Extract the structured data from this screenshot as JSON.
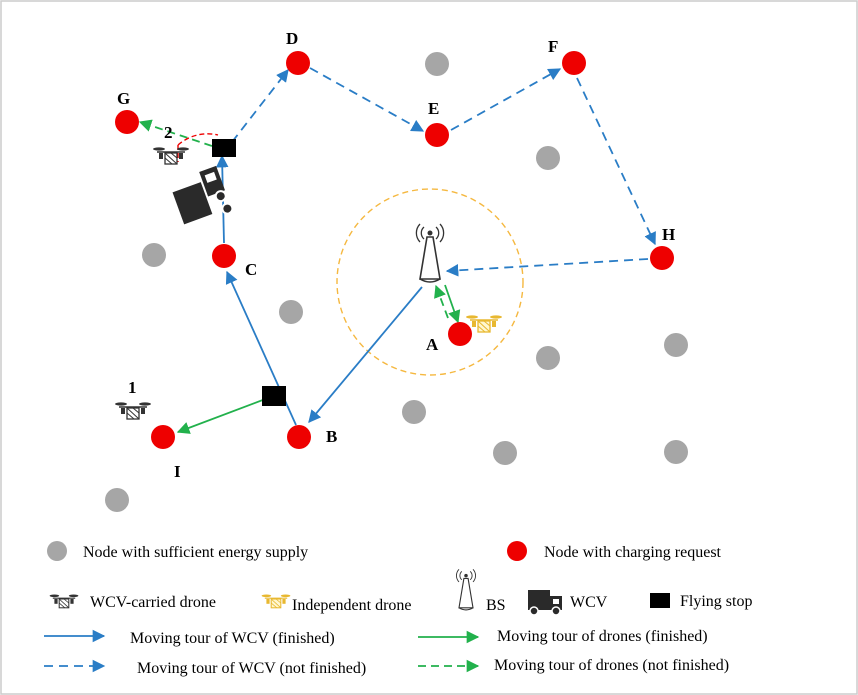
{
  "diagram": {
    "node_labels": {
      "A": "A",
      "B": "B",
      "C": "C",
      "D": "D",
      "E": "E",
      "F": "F",
      "G": "G",
      "H": "H",
      "I": "I"
    },
    "drone_labels": {
      "one": "1",
      "two": "2"
    },
    "colors": {
      "request_node": "#ee0000",
      "sufficient_node": "#a6a6a6",
      "wcv_path": "#2a7dc6",
      "drone_path": "#22b14c",
      "coverage_circle": "#f5b840",
      "independent_drone": "#f0c040"
    }
  },
  "legend": {
    "sufficient": "Node with sufficient energy supply",
    "charging_request": "Node with charging request",
    "wcv_carried_drone": "WCV-carried drone",
    "independent_drone": "Independent drone",
    "bs": "BS",
    "wcv": "WCV",
    "flying_stop": "Flying stop",
    "wcv_finished": "Moving tour of WCV (finished)",
    "wcv_unfinished": "Moving tour of WCV (not finished)",
    "drones_finished": "Moving tour of drones (finished)",
    "drones_unfinished": "Moving tour of drones (not finished)"
  }
}
